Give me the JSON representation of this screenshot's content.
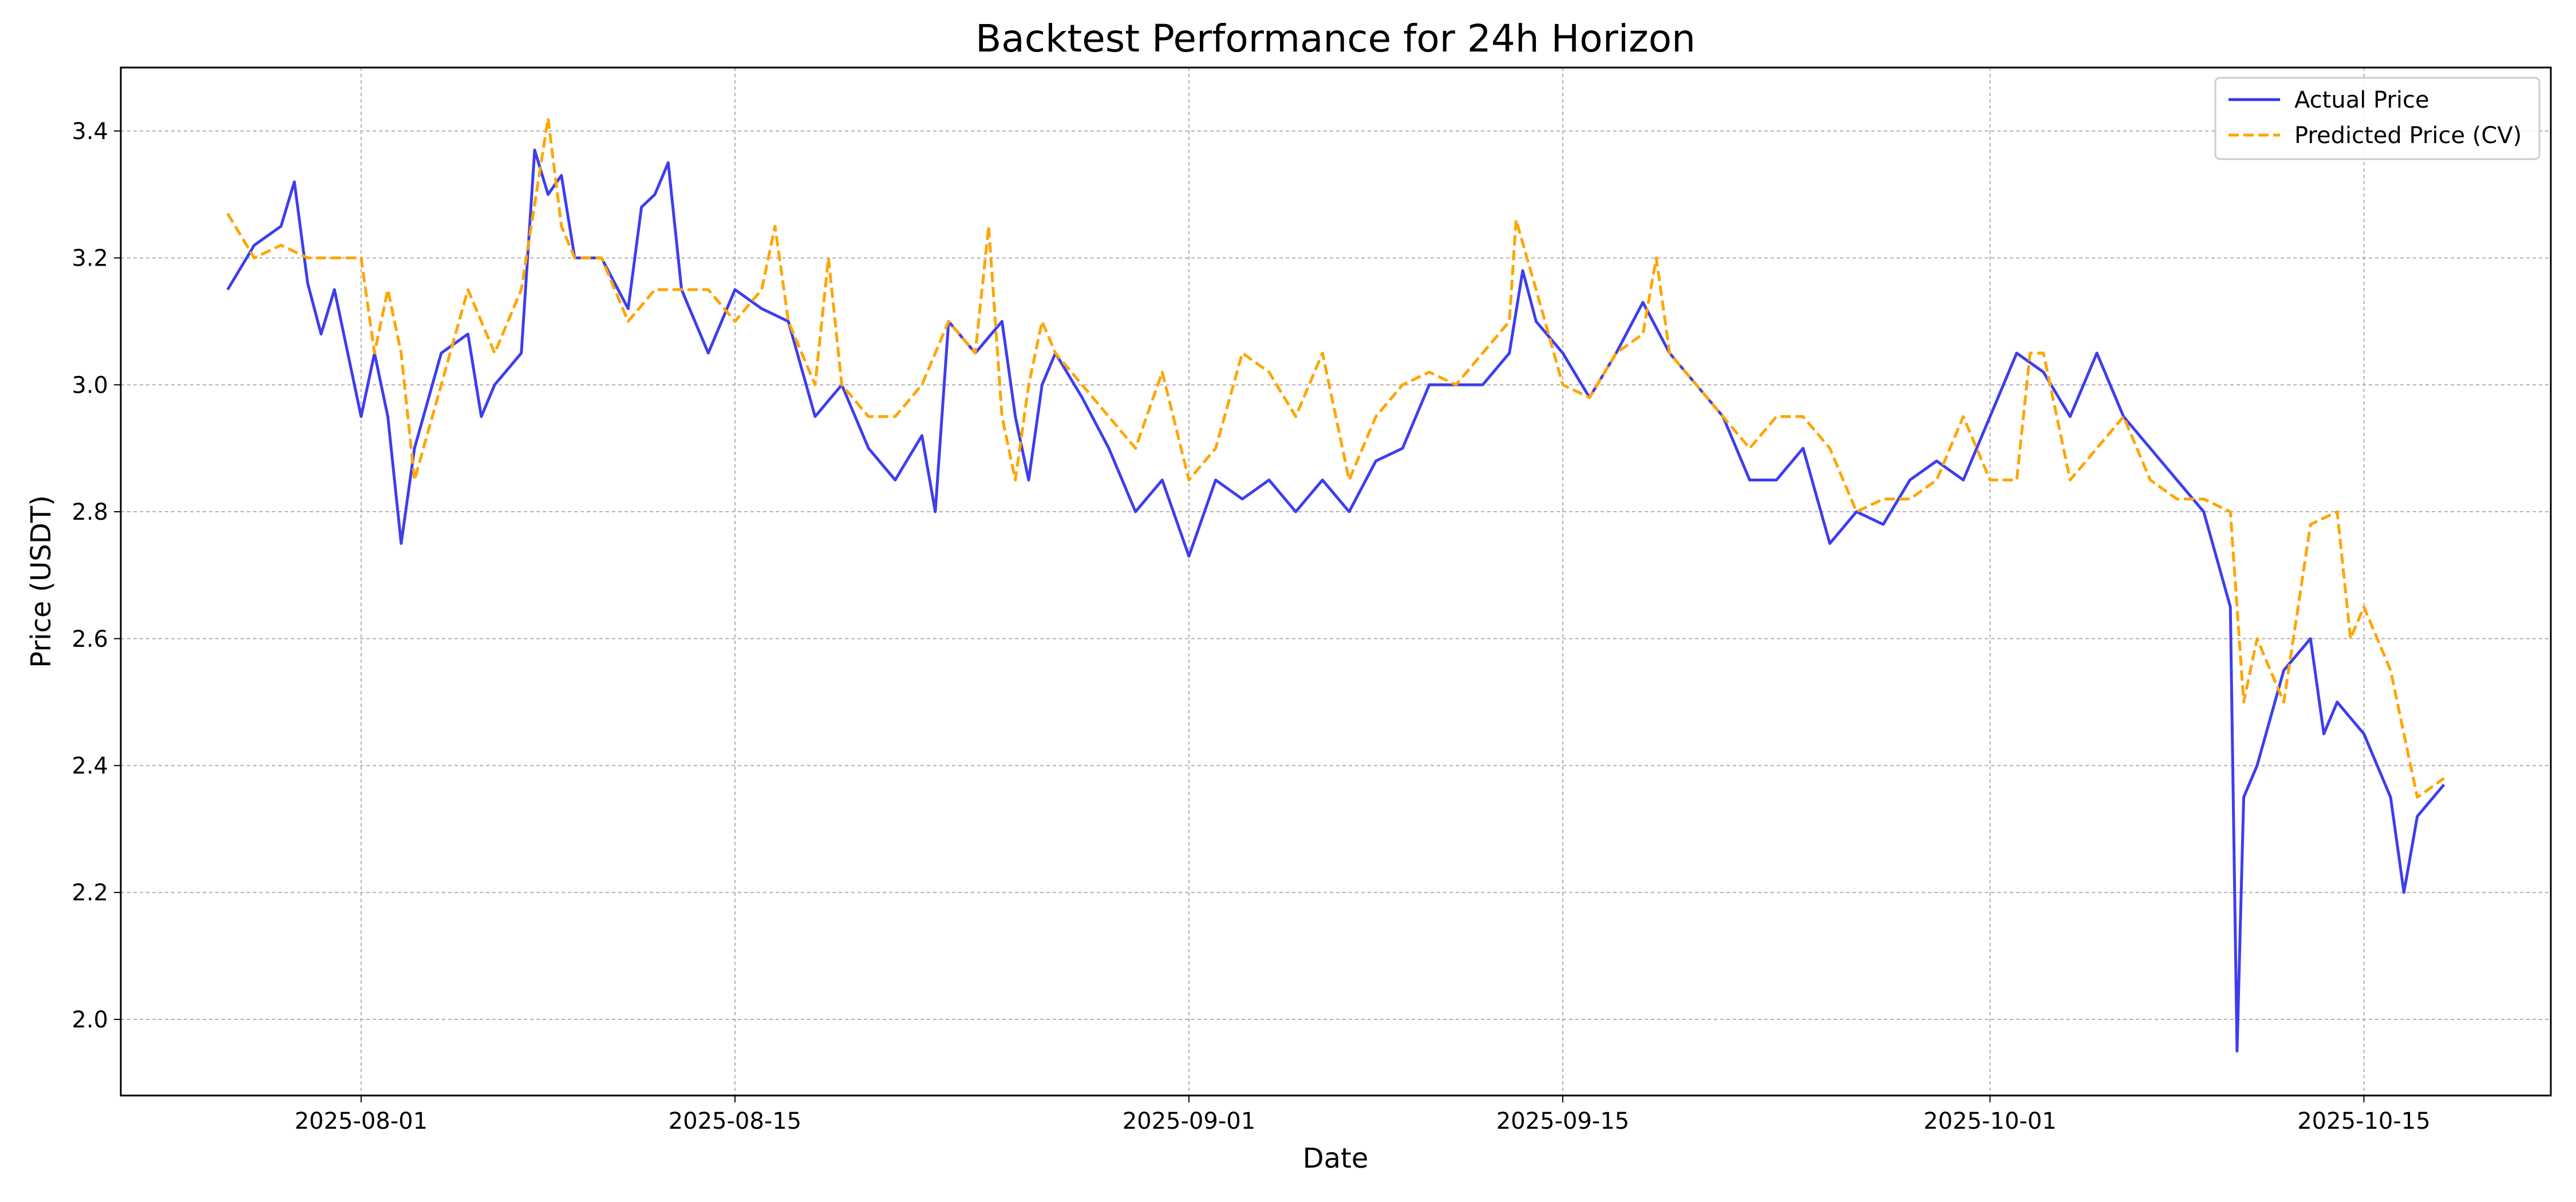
{
  "chart_data": {
    "type": "line",
    "title": "Backtest Performance for 24h Horizon",
    "xlabel": "Date",
    "ylabel": "Price (USDT)",
    "xlim": [
      "2025-07-23",
      "2025-10-22"
    ],
    "ylim": [
      1.88,
      3.5
    ],
    "x_ticks": [
      "2025-08-01",
      "2025-08-15",
      "2025-09-01",
      "2025-09-15",
      "2025-10-01",
      "2025-10-15"
    ],
    "y_ticks": [
      2.0,
      2.2,
      2.4,
      2.6,
      2.8,
      3.0,
      3.2,
      3.4
    ],
    "grid": true,
    "legend": "top-right",
    "colors": {
      "actual": "#3333ee",
      "predicted": "#ffa500"
    },
    "series": [
      {
        "name": "Actual Price",
        "style": "solid",
        "points": [
          [
            "2025-07-27",
            3.15
          ],
          [
            "2025-07-28",
            3.22
          ],
          [
            "2025-07-29",
            3.25
          ],
          [
            "2025-07-29T12",
            3.32
          ],
          [
            "2025-07-30",
            3.16
          ],
          [
            "2025-07-30T12",
            3.08
          ],
          [
            "2025-07-31",
            3.15
          ],
          [
            "2025-08-01",
            2.95
          ],
          [
            "2025-08-01T12",
            3.05
          ],
          [
            "2025-08-02",
            2.95
          ],
          [
            "2025-08-02T12",
            2.75
          ],
          [
            "2025-08-03",
            2.9
          ],
          [
            "2025-08-04",
            3.05
          ],
          [
            "2025-08-05",
            3.08
          ],
          [
            "2025-08-05T12",
            2.95
          ],
          [
            "2025-08-06",
            3.0
          ],
          [
            "2025-08-07",
            3.05
          ],
          [
            "2025-08-07T12",
            3.37
          ],
          [
            "2025-08-08",
            3.3
          ],
          [
            "2025-08-08T12",
            3.33
          ],
          [
            "2025-08-09",
            3.2
          ],
          [
            "2025-08-10",
            3.2
          ],
          [
            "2025-08-11",
            3.12
          ],
          [
            "2025-08-11T12",
            3.28
          ],
          [
            "2025-08-12",
            3.3
          ],
          [
            "2025-08-12T12",
            3.35
          ],
          [
            "2025-08-13",
            3.15
          ],
          [
            "2025-08-14",
            3.05
          ],
          [
            "2025-08-15",
            3.15
          ],
          [
            "2025-08-16",
            3.12
          ],
          [
            "2025-08-17",
            3.1
          ],
          [
            "2025-08-18",
            2.95
          ],
          [
            "2025-08-19",
            3.0
          ],
          [
            "2025-08-20",
            2.9
          ],
          [
            "2025-08-21",
            2.85
          ],
          [
            "2025-08-22",
            2.92
          ],
          [
            "2025-08-22T12",
            2.8
          ],
          [
            "2025-08-23",
            3.1
          ],
          [
            "2025-08-24",
            3.05
          ],
          [
            "2025-08-25",
            3.1
          ],
          [
            "2025-08-25T12",
            2.95
          ],
          [
            "2025-08-26",
            2.85
          ],
          [
            "2025-08-26T12",
            3.0
          ],
          [
            "2025-08-27",
            3.05
          ],
          [
            "2025-08-28",
            2.98
          ],
          [
            "2025-08-29",
            2.9
          ],
          [
            "2025-08-30",
            2.8
          ],
          [
            "2025-08-31",
            2.85
          ],
          [
            "2025-09-01",
            2.73
          ],
          [
            "2025-09-02",
            2.85
          ],
          [
            "2025-09-03",
            2.82
          ],
          [
            "2025-09-04",
            2.85
          ],
          [
            "2025-09-05",
            2.8
          ],
          [
            "2025-09-06",
            2.85
          ],
          [
            "2025-09-07",
            2.8
          ],
          [
            "2025-09-08",
            2.88
          ],
          [
            "2025-09-09",
            2.9
          ],
          [
            "2025-09-10",
            3.0
          ],
          [
            "2025-09-11",
            3.0
          ],
          [
            "2025-09-12",
            3.0
          ],
          [
            "2025-09-13",
            3.05
          ],
          [
            "2025-09-13T12",
            3.18
          ],
          [
            "2025-09-14",
            3.1
          ],
          [
            "2025-09-15",
            3.05
          ],
          [
            "2025-09-16",
            2.98
          ],
          [
            "2025-09-17",
            3.05
          ],
          [
            "2025-09-18",
            3.13
          ],
          [
            "2025-09-19",
            3.05
          ],
          [
            "2025-09-20",
            3.0
          ],
          [
            "2025-09-21",
            2.95
          ],
          [
            "2025-09-22",
            2.85
          ],
          [
            "2025-09-23",
            2.85
          ],
          [
            "2025-09-24",
            2.9
          ],
          [
            "2025-09-25",
            2.75
          ],
          [
            "2025-09-26",
            2.8
          ],
          [
            "2025-09-27",
            2.78
          ],
          [
            "2025-09-28",
            2.85
          ],
          [
            "2025-09-29",
            2.88
          ],
          [
            "2025-09-30",
            2.85
          ],
          [
            "2025-10-01",
            2.95
          ],
          [
            "2025-10-02",
            3.05
          ],
          [
            "2025-10-03",
            3.02
          ],
          [
            "2025-10-04",
            2.95
          ],
          [
            "2025-10-05",
            3.05
          ],
          [
            "2025-10-06",
            2.95
          ],
          [
            "2025-10-07",
            2.9
          ],
          [
            "2025-10-08",
            2.85
          ],
          [
            "2025-10-09",
            2.8
          ],
          [
            "2025-10-10",
            2.65
          ],
          [
            "2025-10-10T06",
            1.95
          ],
          [
            "2025-10-10T12",
            2.35
          ],
          [
            "2025-10-11",
            2.4
          ],
          [
            "2025-10-12",
            2.55
          ],
          [
            "2025-10-13",
            2.6
          ],
          [
            "2025-10-13T12",
            2.45
          ],
          [
            "2025-10-14",
            2.5
          ],
          [
            "2025-10-15",
            2.45
          ],
          [
            "2025-10-16",
            2.35
          ],
          [
            "2025-10-16T12",
            2.2
          ],
          [
            "2025-10-17",
            2.32
          ],
          [
            "2025-10-18",
            2.37
          ]
        ]
      },
      {
        "name": "Predicted Price (CV)",
        "style": "dashed",
        "points": [
          [
            "2025-07-27",
            3.27
          ],
          [
            "2025-07-28",
            3.2
          ],
          [
            "2025-07-29",
            3.22
          ],
          [
            "2025-07-30",
            3.2
          ],
          [
            "2025-07-31",
            3.2
          ],
          [
            "2025-08-01",
            3.2
          ],
          [
            "2025-08-01T12",
            3.05
          ],
          [
            "2025-08-02",
            3.15
          ],
          [
            "2025-08-02T12",
            3.05
          ],
          [
            "2025-08-03",
            2.85
          ],
          [
            "2025-08-04",
            3.0
          ],
          [
            "2025-08-05",
            3.15
          ],
          [
            "2025-08-06",
            3.05
          ],
          [
            "2025-08-07",
            3.15
          ],
          [
            "2025-08-08",
            3.42
          ],
          [
            "2025-08-08T12",
            3.25
          ],
          [
            "2025-08-09",
            3.2
          ],
          [
            "2025-08-10",
            3.2
          ],
          [
            "2025-08-11",
            3.1
          ],
          [
            "2025-08-12",
            3.15
          ],
          [
            "2025-08-13",
            3.15
          ],
          [
            "2025-08-14",
            3.15
          ],
          [
            "2025-08-15",
            3.1
          ],
          [
            "2025-08-16",
            3.15
          ],
          [
            "2025-08-16T12",
            3.25
          ],
          [
            "2025-08-17",
            3.1
          ],
          [
            "2025-08-18",
            3.0
          ],
          [
            "2025-08-18T12",
            3.2
          ],
          [
            "2025-08-19",
            3.0
          ],
          [
            "2025-08-20",
            2.95
          ],
          [
            "2025-08-21",
            2.95
          ],
          [
            "2025-08-22",
            3.0
          ],
          [
            "2025-08-23",
            3.1
          ],
          [
            "2025-08-24",
            3.05
          ],
          [
            "2025-08-24T12",
            3.25
          ],
          [
            "2025-08-25",
            2.95
          ],
          [
            "2025-08-25T12",
            2.85
          ],
          [
            "2025-08-26",
            3.0
          ],
          [
            "2025-08-26T12",
            3.1
          ],
          [
            "2025-08-27",
            3.05
          ],
          [
            "2025-08-28",
            3.0
          ],
          [
            "2025-08-29",
            2.95
          ],
          [
            "2025-08-30",
            2.9
          ],
          [
            "2025-08-31",
            3.02
          ],
          [
            "2025-09-01",
            2.85
          ],
          [
            "2025-09-02",
            2.9
          ],
          [
            "2025-09-03",
            3.05
          ],
          [
            "2025-09-04",
            3.02
          ],
          [
            "2025-09-05",
            2.95
          ],
          [
            "2025-09-06",
            3.05
          ],
          [
            "2025-09-07",
            2.85
          ],
          [
            "2025-09-08",
            2.95
          ],
          [
            "2025-09-09",
            3.0
          ],
          [
            "2025-09-10",
            3.02
          ],
          [
            "2025-09-11",
            3.0
          ],
          [
            "2025-09-12",
            3.05
          ],
          [
            "2025-09-13",
            3.1
          ],
          [
            "2025-09-13T06",
            3.26
          ],
          [
            "2025-09-14",
            3.15
          ],
          [
            "2025-09-15",
            3.0
          ],
          [
            "2025-09-16",
            2.98
          ],
          [
            "2025-09-17",
            3.05
          ],
          [
            "2025-09-18",
            3.08
          ],
          [
            "2025-09-18T12",
            3.2
          ],
          [
            "2025-09-19",
            3.05
          ],
          [
            "2025-09-20",
            3.0
          ],
          [
            "2025-09-21",
            2.95
          ],
          [
            "2025-09-22",
            2.9
          ],
          [
            "2025-09-23",
            2.95
          ],
          [
            "2025-09-24",
            2.95
          ],
          [
            "2025-09-25",
            2.9
          ],
          [
            "2025-09-26",
            2.8
          ],
          [
            "2025-09-27",
            2.82
          ],
          [
            "2025-09-28",
            2.82
          ],
          [
            "2025-09-29",
            2.85
          ],
          [
            "2025-09-30",
            2.95
          ],
          [
            "2025-10-01",
            2.85
          ],
          [
            "2025-10-02",
            2.85
          ],
          [
            "2025-10-02T12",
            3.05
          ],
          [
            "2025-10-03",
            3.05
          ],
          [
            "2025-10-04",
            2.85
          ],
          [
            "2025-10-05",
            2.9
          ],
          [
            "2025-10-06",
            2.95
          ],
          [
            "2025-10-07",
            2.85
          ],
          [
            "2025-10-08",
            2.82
          ],
          [
            "2025-10-09",
            2.82
          ],
          [
            "2025-10-10",
            2.8
          ],
          [
            "2025-10-10T12",
            2.5
          ],
          [
            "2025-10-11",
            2.6
          ],
          [
            "2025-10-12",
            2.5
          ],
          [
            "2025-10-13",
            2.78
          ],
          [
            "2025-10-14",
            2.8
          ],
          [
            "2025-10-14T12",
            2.6
          ],
          [
            "2025-10-15",
            2.65
          ],
          [
            "2025-10-16",
            2.55
          ],
          [
            "2025-10-16T12",
            2.45
          ],
          [
            "2025-10-17",
            2.35
          ],
          [
            "2025-10-18",
            2.38
          ]
        ]
      }
    ]
  }
}
